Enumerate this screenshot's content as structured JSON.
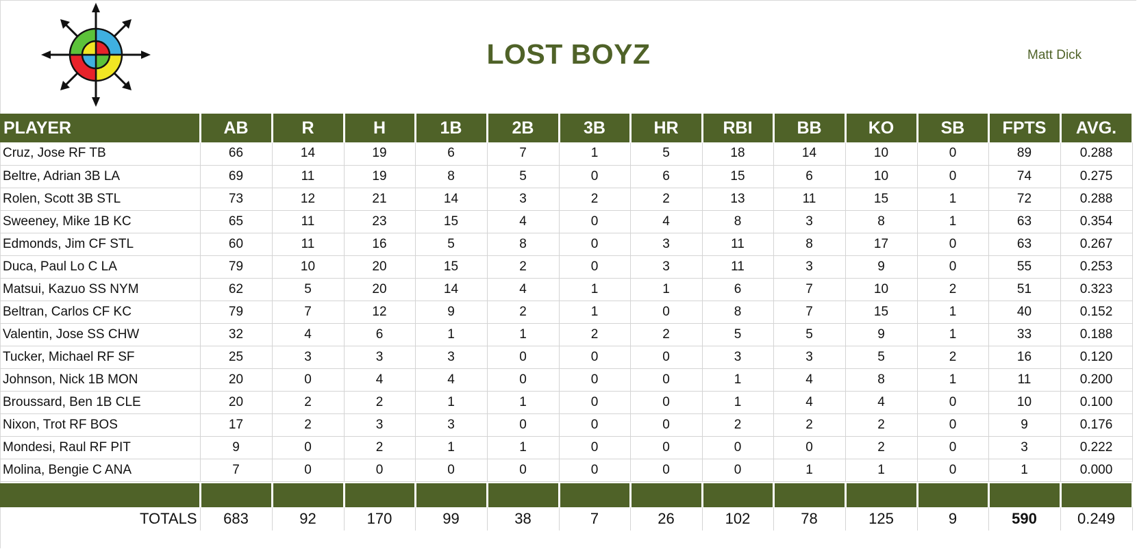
{
  "team_name": "LOST BOYZ",
  "owner": "Matt Dick",
  "logo_icon": "compass-target-logo-icon",
  "colors": {
    "header_green": "#4f6228",
    "title_green": "#4f6228"
  },
  "columns": [
    "PLAYER",
    "AB",
    "R",
    "H",
    "1B",
    "2B",
    "3B",
    "HR",
    "RBI",
    "BB",
    "KO",
    "SB",
    "FPTS",
    "AVG."
  ],
  "rows": [
    [
      "Cruz, Jose RF TB",
      "66",
      "14",
      "19",
      "6",
      "7",
      "1",
      "5",
      "18",
      "14",
      "10",
      "0",
      "89",
      "0.288"
    ],
    [
      "Beltre, Adrian 3B LA",
      "69",
      "11",
      "19",
      "8",
      "5",
      "0",
      "6",
      "15",
      "6",
      "10",
      "0",
      "74",
      "0.275"
    ],
    [
      "Rolen, Scott 3B STL",
      "73",
      "12",
      "21",
      "14",
      "3",
      "2",
      "2",
      "13",
      "11",
      "15",
      "1",
      "72",
      "0.288"
    ],
    [
      "Sweeney, Mike 1B KC",
      "65",
      "11",
      "23",
      "15",
      "4",
      "0",
      "4",
      "8",
      "3",
      "8",
      "1",
      "63",
      "0.354"
    ],
    [
      "Edmonds, Jim CF STL",
      "60",
      "11",
      "16",
      "5",
      "8",
      "0",
      "3",
      "11",
      "8",
      "17",
      "0",
      "63",
      "0.267"
    ],
    [
      "Duca, Paul Lo C LA",
      "79",
      "10",
      "20",
      "15",
      "2",
      "0",
      "3",
      "11",
      "3",
      "9",
      "0",
      "55",
      "0.253"
    ],
    [
      "Matsui, Kazuo SS NYM",
      "62",
      "5",
      "20",
      "14",
      "4",
      "1",
      "1",
      "6",
      "7",
      "10",
      "2",
      "51",
      "0.323"
    ],
    [
      "Beltran, Carlos CF KC",
      "79",
      "7",
      "12",
      "9",
      "2",
      "1",
      "0",
      "8",
      "7",
      "15",
      "1",
      "40",
      "0.152"
    ],
    [
      "Valentin, Jose SS CHW",
      "32",
      "4",
      "6",
      "1",
      "1",
      "2",
      "2",
      "5",
      "5",
      "9",
      "1",
      "33",
      "0.188"
    ],
    [
      "Tucker, Michael RF SF",
      "25",
      "3",
      "3",
      "3",
      "0",
      "0",
      "0",
      "3",
      "3",
      "5",
      "2",
      "16",
      "0.120"
    ],
    [
      "Johnson, Nick 1B MON",
      "20",
      "0",
      "4",
      "4",
      "0",
      "0",
      "0",
      "1",
      "4",
      "8",
      "1",
      "11",
      "0.200"
    ],
    [
      "Broussard, Ben 1B CLE",
      "20",
      "2",
      "2",
      "1",
      "1",
      "0",
      "0",
      "1",
      "4",
      "4",
      "0",
      "10",
      "0.100"
    ],
    [
      "Nixon, Trot RF BOS",
      "17",
      "2",
      "3",
      "3",
      "0",
      "0",
      "0",
      "2",
      "2",
      "2",
      "0",
      "9",
      "0.176"
    ],
    [
      "Mondesi, Raul RF PIT",
      "9",
      "0",
      "2",
      "1",
      "1",
      "0",
      "0",
      "0",
      "0",
      "2",
      "0",
      "3",
      "0.222"
    ],
    [
      "Molina, Bengie C ANA",
      "7",
      "0",
      "0",
      "0",
      "0",
      "0",
      "0",
      "0",
      "1",
      "1",
      "0",
      "1",
      "0.000"
    ]
  ],
  "totals": [
    "TOTALS",
    "683",
    "92",
    "170",
    "99",
    "38",
    "7",
    "26",
    "102",
    "78",
    "125",
    "9",
    "590",
    "0.249"
  ]
}
